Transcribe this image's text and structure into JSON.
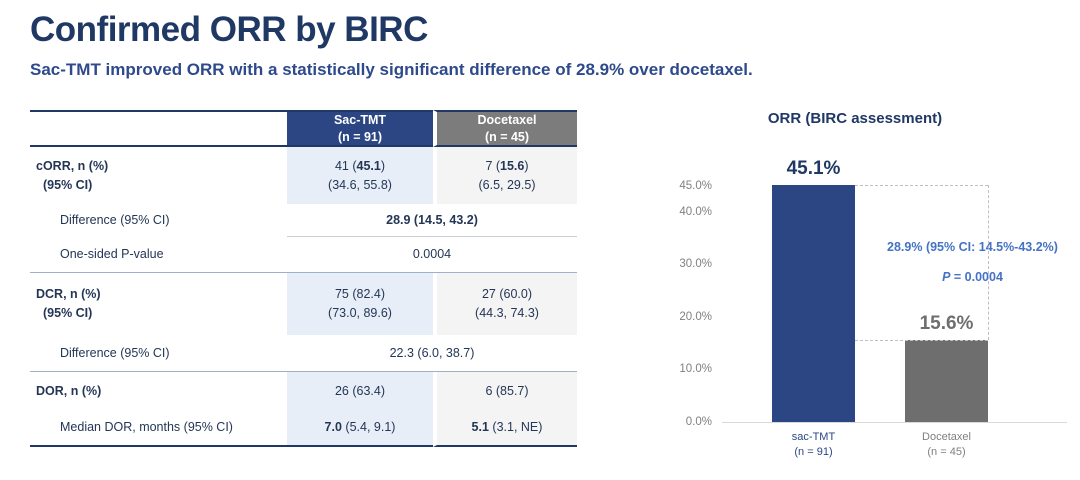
{
  "slide": {
    "title": "Confirmed ORR by BIRC",
    "subtitle": "Sac-TMT improved ORR with a statistically significant difference of 28.9% over docetaxel."
  },
  "table": {
    "header": {
      "sac_name": "Sac-TMT",
      "sac_n": "(n = 91)",
      "doc_name": "Docetaxel",
      "doc_n": "(n = 45)"
    },
    "rows": {
      "corr": {
        "label1": "cORR, n (%)",
        "label2": "(95% CI)",
        "sac1": "41 (**45.1**)",
        "sac2": "(34.6, 55.8)",
        "doc1": "7 (**15.6**)",
        "doc2": "(6.5, 29.5)"
      },
      "corr_diff": {
        "label": "Difference (95% CI)",
        "value": "**28.9 (14.5, 43.2)**"
      },
      "corr_p": {
        "label": "One-sided P-value",
        "value": "0.0004"
      },
      "dcr": {
        "label1": "DCR, n (%)",
        "label2": "(95% CI)",
        "sac1": "75 (82.4)",
        "sac2": "(73.0, 89.6)",
        "doc1": "27 (60.0)",
        "doc2": "(44.3, 74.3)"
      },
      "dcr_diff": {
        "label": "Difference (95% CI)",
        "value": "22.3 (6.0, 38.7)"
      },
      "dor": {
        "label": "DOR, n (%)",
        "sac": "26 (63.4)",
        "doc": "6 (85.7)"
      },
      "dor_median": {
        "label": "Median DOR, months (95% CI)",
        "sac": "**7.0** (5.4, 9.1)",
        "doc": "**5.1** (3.1, NE)"
      }
    }
  },
  "chart_data": {
    "type": "bar",
    "title": "ORR (BIRC assessment)",
    "categories": [
      "sac-TMT",
      "Docetaxel"
    ],
    "category_ns": [
      "(n = 91)",
      "(n = 45)"
    ],
    "values": [
      45.1,
      15.6
    ],
    "bar_labels": [
      "45.1%",
      "15.6%"
    ],
    "bar_colors": [
      "#2B4683",
      "#6E6E6E"
    ],
    "bar_label_colors": [
      "#1F3864",
      "#6E6E6E"
    ],
    "ylim": [
      0,
      45
    ],
    "grid": false,
    "legend": false,
    "yticks": [
      {
        "v": 45,
        "label": "45.0%"
      },
      {
        "v": 40,
        "label": "40.0%"
      },
      {
        "v": 30,
        "label": "30.0%"
      },
      {
        "v": 20,
        "label": "20.0%"
      },
      {
        "v": 10,
        "label": "10.0%"
      },
      {
        "v": 0,
        "label": "0.0%"
      }
    ],
    "annotation": {
      "line1": "28.9% (95% CI: 14.5%-43.2%)",
      "p": "P",
      "p_rest": " = 0.0004"
    }
  },
  "colors": {
    "navy": "#1F3864",
    "subtitle_navy": "#2E4A8C",
    "header_navy": "#2B4683",
    "header_gray": "#7C7C7C",
    "bar_navy": "#2B4683",
    "bar_gray": "#6E6E6E",
    "shade_blue": "#E8EEF8",
    "shade_gray": "#F4F4F4",
    "annotation_blue": "#4472C4"
  }
}
